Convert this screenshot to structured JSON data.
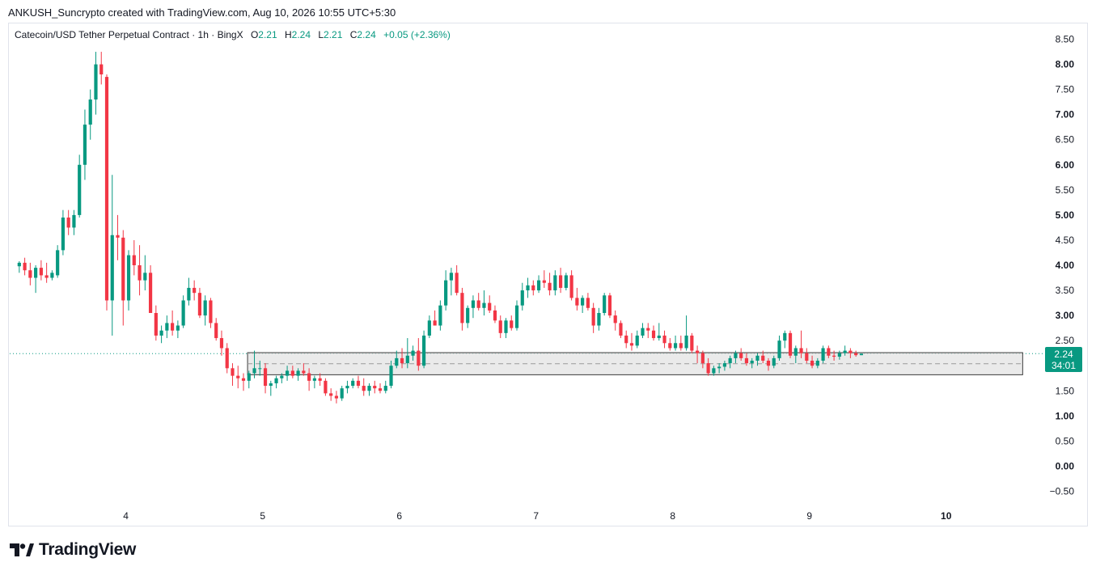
{
  "caption": "ANKUSH_Suncrypto created with TradingView.com, Aug 10, 2026 10:55 UTC+5:30",
  "legend": {
    "symbol": "Catecoin/USD Tether Perpetual Contract · 1h · BingX",
    "o_label": "O",
    "o_value": "2.21",
    "h_label": "H",
    "h_value": "2.24",
    "l_label": "L",
    "l_value": "2.21",
    "c_label": "C",
    "c_value": "2.24",
    "change": "+0.05 (+2.36%)"
  },
  "price_tag": {
    "price": "2.24",
    "countdown": "34:01"
  },
  "brand": "TradingView",
  "colors": {
    "up": "#089981",
    "down": "#f23645",
    "zone_fill": "#e3e3e3",
    "zone_border": "#3a3a3a"
  },
  "chart_data": {
    "type": "candlestick",
    "ylim": [
      -0.75,
      8.75
    ],
    "y_ticks": [
      {
        "value": 8.5,
        "label": "8.50",
        "bold": false
      },
      {
        "value": 8.0,
        "label": "8.00",
        "bold": true
      },
      {
        "value": 7.5,
        "label": "7.50",
        "bold": false
      },
      {
        "value": 7.0,
        "label": "7.00",
        "bold": true
      },
      {
        "value": 6.5,
        "label": "6.50",
        "bold": false
      },
      {
        "value": 6.0,
        "label": "6.00",
        "bold": true
      },
      {
        "value": 5.5,
        "label": "5.50",
        "bold": false
      },
      {
        "value": 5.0,
        "label": "5.00",
        "bold": true
      },
      {
        "value": 4.5,
        "label": "4.50",
        "bold": false
      },
      {
        "value": 4.0,
        "label": "4.00",
        "bold": true
      },
      {
        "value": 3.5,
        "label": "3.50",
        "bold": false
      },
      {
        "value": 3.0,
        "label": "3.00",
        "bold": true
      },
      {
        "value": 2.5,
        "label": "2.50",
        "bold": false
      },
      {
        "value": 1.5,
        "label": "1.50",
        "bold": false
      },
      {
        "value": 1.0,
        "label": "1.00",
        "bold": true
      },
      {
        "value": 0.5,
        "label": "0.50",
        "bold": false
      },
      {
        "value": 0.0,
        "label": "0.00",
        "bold": true
      },
      {
        "value": -0.5,
        "label": "−0.50",
        "bold": false
      }
    ],
    "x_ticks": [
      {
        "label": "4",
        "at": 3.85,
        "bold": false
      },
      {
        "label": "5",
        "at": 4.85,
        "bold": false
      },
      {
        "label": "6",
        "at": 5.85,
        "bold": false
      },
      {
        "label": "7",
        "at": 6.85,
        "bold": false
      },
      {
        "label": "8",
        "at": 7.85,
        "bold": false
      },
      {
        "label": "9",
        "at": 8.85,
        "bold": false
      },
      {
        "label": "10",
        "at": 9.85,
        "bold": true
      }
    ],
    "x_start": 3.07,
    "x_step": 0.04,
    "ohlc": [
      [
        3.98,
        4.08,
        3.85,
        4.05
      ],
      [
        4.05,
        4.15,
        3.8,
        3.9
      ],
      [
        3.9,
        4.05,
        3.6,
        3.75
      ],
      [
        3.75,
        4.0,
        3.45,
        3.95
      ],
      [
        3.95,
        4.1,
        3.7,
        3.8
      ],
      [
        3.8,
        4.05,
        3.65,
        3.75
      ],
      [
        3.75,
        3.9,
        3.7,
        3.85
      ],
      [
        3.8,
        4.4,
        3.75,
        4.3
      ],
      [
        4.3,
        5.1,
        4.2,
        4.95
      ],
      [
        4.95,
        5.1,
        4.6,
        4.75
      ],
      [
        4.75,
        5.1,
        4.6,
        5.0
      ],
      [
        5.0,
        6.2,
        4.95,
        6.0
      ],
      [
        6.0,
        7.1,
        5.7,
        6.8
      ],
      [
        6.8,
        7.5,
        6.5,
        7.3
      ],
      [
        7.3,
        8.25,
        7.0,
        8.0
      ],
      [
        8.0,
        8.25,
        7.6,
        7.8
      ],
      [
        7.75,
        7.8,
        3.1,
        3.3
      ],
      [
        3.3,
        5.8,
        2.6,
        4.6
      ],
      [
        4.6,
        5.0,
        4.1,
        4.55
      ],
      [
        4.55,
        4.7,
        2.8,
        3.3
      ],
      [
        3.3,
        4.3,
        3.1,
        4.2
      ],
      [
        4.2,
        4.5,
        3.8,
        4.0
      ],
      [
        4.0,
        4.4,
        3.4,
        3.7
      ],
      [
        3.7,
        4.2,
        3.5,
        3.85
      ],
      [
        3.85,
        4.0,
        3.1,
        3.05
      ],
      [
        3.05,
        3.2,
        2.5,
        2.6
      ],
      [
        2.6,
        2.8,
        2.45,
        2.7
      ],
      [
        2.7,
        3.0,
        2.55,
        2.85
      ],
      [
        2.85,
        3.1,
        2.6,
        2.7
      ],
      [
        2.7,
        2.9,
        2.55,
        2.8
      ],
      [
        2.8,
        3.4,
        2.75,
        3.3
      ],
      [
        3.3,
        3.75,
        3.2,
        3.55
      ],
      [
        3.55,
        3.7,
        3.3,
        3.45
      ],
      [
        3.45,
        3.55,
        2.95,
        3.0
      ],
      [
        3.0,
        3.4,
        2.8,
        3.3
      ],
      [
        3.3,
        3.35,
        2.75,
        2.85
      ],
      [
        2.85,
        2.95,
        2.5,
        2.55
      ],
      [
        2.55,
        2.7,
        2.2,
        2.35
      ],
      [
        2.35,
        2.45,
        1.85,
        1.95
      ],
      [
        1.95,
        2.05,
        1.6,
        1.8
      ],
      [
        1.8,
        2.0,
        1.55,
        1.75
      ],
      [
        1.75,
        1.85,
        1.5,
        1.7
      ],
      [
        1.7,
        1.9,
        1.55,
        1.85
      ],
      [
        1.85,
        2.3,
        1.75,
        1.95
      ],
      [
        1.95,
        2.1,
        1.8,
        1.95
      ],
      [
        1.95,
        2.05,
        1.45,
        1.6
      ],
      [
        1.6,
        1.7,
        1.4,
        1.65
      ],
      [
        1.65,
        1.8,
        1.55,
        1.75
      ],
      [
        1.75,
        1.85,
        1.65,
        1.8
      ],
      [
        1.8,
        2.0,
        1.7,
        1.9
      ],
      [
        1.9,
        2.0,
        1.75,
        1.8
      ],
      [
        1.8,
        1.95,
        1.7,
        1.9
      ],
      [
        1.9,
        2.05,
        1.8,
        1.85
      ],
      [
        1.85,
        1.95,
        1.5,
        1.7
      ],
      [
        1.7,
        1.8,
        1.55,
        1.75
      ],
      [
        1.75,
        1.85,
        1.6,
        1.7
      ],
      [
        1.7,
        1.75,
        1.4,
        1.45
      ],
      [
        1.45,
        1.55,
        1.3,
        1.4
      ],
      [
        1.4,
        1.5,
        1.25,
        1.35
      ],
      [
        1.35,
        1.6,
        1.3,
        1.55
      ],
      [
        1.55,
        1.7,
        1.45,
        1.6
      ],
      [
        1.6,
        1.75,
        1.55,
        1.7
      ],
      [
        1.7,
        1.8,
        1.55,
        1.6
      ],
      [
        1.6,
        1.75,
        1.4,
        1.5
      ],
      [
        1.5,
        1.65,
        1.4,
        1.6
      ],
      [
        1.6,
        1.7,
        1.45,
        1.55
      ],
      [
        1.55,
        1.65,
        1.45,
        1.5
      ],
      [
        1.5,
        1.7,
        1.45,
        1.6
      ],
      [
        1.6,
        2.1,
        1.55,
        2.0
      ],
      [
        2.0,
        2.3,
        1.95,
        2.15
      ],
      [
        2.15,
        2.35,
        1.95,
        2.05
      ],
      [
        2.05,
        2.55,
        1.95,
        2.2
      ],
      [
        2.2,
        2.4,
        2.1,
        2.3
      ],
      [
        2.3,
        2.55,
        1.9,
        2.0
      ],
      [
        2.0,
        2.7,
        1.95,
        2.6
      ],
      [
        2.6,
        3.0,
        2.55,
        2.9
      ],
      [
        2.9,
        3.1,
        2.8,
        2.8
      ],
      [
        2.8,
        3.3,
        2.7,
        3.2
      ],
      [
        3.2,
        3.9,
        3.1,
        3.7
      ],
      [
        3.7,
        3.95,
        3.4,
        3.85
      ],
      [
        3.85,
        4.0,
        3.4,
        3.45
      ],
      [
        3.45,
        3.55,
        2.7,
        2.85
      ],
      [
        2.85,
        3.2,
        2.75,
        3.15
      ],
      [
        3.15,
        3.4,
        2.95,
        3.3
      ],
      [
        3.3,
        3.45,
        3.1,
        3.15
      ],
      [
        3.15,
        3.5,
        3.0,
        3.25
      ],
      [
        3.25,
        3.4,
        3.05,
        3.1
      ],
      [
        3.1,
        3.2,
        2.85,
        2.9
      ],
      [
        2.9,
        3.0,
        2.55,
        2.65
      ],
      [
        2.65,
        2.95,
        2.55,
        2.9
      ],
      [
        2.9,
        3.0,
        2.7,
        2.75
      ],
      [
        2.75,
        3.3,
        2.7,
        3.2
      ],
      [
        3.2,
        3.65,
        3.1,
        3.5
      ],
      [
        3.5,
        3.75,
        3.35,
        3.6
      ],
      [
        3.6,
        3.7,
        3.4,
        3.5
      ],
      [
        3.5,
        3.8,
        3.45,
        3.7
      ],
      [
        3.7,
        3.9,
        3.55,
        3.65
      ],
      [
        3.65,
        3.85,
        3.4,
        3.5
      ],
      [
        3.5,
        3.9,
        3.4,
        3.8
      ],
      [
        3.8,
        3.95,
        3.45,
        3.55
      ],
      [
        3.55,
        3.85,
        3.5,
        3.8
      ],
      [
        3.8,
        3.9,
        3.3,
        3.35
      ],
      [
        3.35,
        3.55,
        3.1,
        3.2
      ],
      [
        3.2,
        3.4,
        3.05,
        3.35
      ],
      [
        3.35,
        3.45,
        3.1,
        3.15
      ],
      [
        3.15,
        3.25,
        2.65,
        2.8
      ],
      [
        2.8,
        3.15,
        2.7,
        3.05
      ],
      [
        3.05,
        3.45,
        3.0,
        3.4
      ],
      [
        3.4,
        3.45,
        2.95,
        3.0
      ],
      [
        3.0,
        3.1,
        2.7,
        2.85
      ],
      [
        2.85,
        2.9,
        2.55,
        2.6
      ],
      [
        2.6,
        2.7,
        2.35,
        2.45
      ],
      [
        2.45,
        2.65,
        2.3,
        2.4
      ],
      [
        2.4,
        2.7,
        2.35,
        2.6
      ],
      [
        2.6,
        2.85,
        2.55,
        2.75
      ],
      [
        2.75,
        2.85,
        2.55,
        2.7
      ],
      [
        2.7,
        2.8,
        2.5,
        2.55
      ],
      [
        2.55,
        2.85,
        2.5,
        2.6
      ],
      [
        2.6,
        2.7,
        2.35,
        2.45
      ],
      [
        2.45,
        2.55,
        2.3,
        2.35
      ],
      [
        2.35,
        2.6,
        2.3,
        2.45
      ],
      [
        2.45,
        2.6,
        2.3,
        2.35
      ],
      [
        2.35,
        3.0,
        2.3,
        2.6
      ],
      [
        2.6,
        2.65,
        2.25,
        2.3
      ],
      [
        2.3,
        2.4,
        2.05,
        2.25
      ],
      [
        2.25,
        2.3,
        1.95,
        2.05
      ],
      [
        2.05,
        2.15,
        1.8,
        1.85
      ],
      [
        1.85,
        2.0,
        1.8,
        1.95
      ],
      [
        1.95,
        2.05,
        1.85,
        1.98
      ],
      [
        1.98,
        2.1,
        1.9,
        2.05
      ],
      [
        2.05,
        2.2,
        1.95,
        2.15
      ],
      [
        2.15,
        2.3,
        2.05,
        2.25
      ],
      [
        2.25,
        2.35,
        2.1,
        2.15
      ],
      [
        2.15,
        2.25,
        2.0,
        2.05
      ],
      [
        2.05,
        2.15,
        1.95,
        2.1
      ],
      [
        2.1,
        2.25,
        2.0,
        2.2
      ],
      [
        2.2,
        2.3,
        2.05,
        2.1
      ],
      [
        2.1,
        2.15,
        1.9,
        2.0
      ],
      [
        2.0,
        2.2,
        1.95,
        2.15
      ],
      [
        2.15,
        2.6,
        2.1,
        2.5
      ],
      [
        2.5,
        2.7,
        2.35,
        2.65
      ],
      [
        2.65,
        2.7,
        2.15,
        2.2
      ],
      [
        2.2,
        2.4,
        2.05,
        2.35
      ],
      [
        2.35,
        2.7,
        2.15,
        2.25
      ],
      [
        2.25,
        2.35,
        2.05,
        2.1
      ],
      [
        2.1,
        2.2,
        1.95,
        2.0
      ],
      [
        2.0,
        2.15,
        1.95,
        2.1
      ],
      [
        2.1,
        2.4,
        2.05,
        2.35
      ],
      [
        2.35,
        2.4,
        2.15,
        2.2
      ],
      [
        2.2,
        2.3,
        2.1,
        2.18
      ],
      [
        2.18,
        2.3,
        2.12,
        2.25
      ],
      [
        2.25,
        2.4,
        2.2,
        2.3
      ],
      [
        2.3,
        2.35,
        2.15,
        2.25
      ],
      [
        2.25,
        2.3,
        2.18,
        2.21
      ],
      [
        2.21,
        2.24,
        2.21,
        2.24
      ]
    ],
    "zone": {
      "x_from": 4.74,
      "x_to": 10.41,
      "y_low": 1.82,
      "y_high": 2.26,
      "mid": 2.04
    },
    "last_price_line": 2.24
  }
}
